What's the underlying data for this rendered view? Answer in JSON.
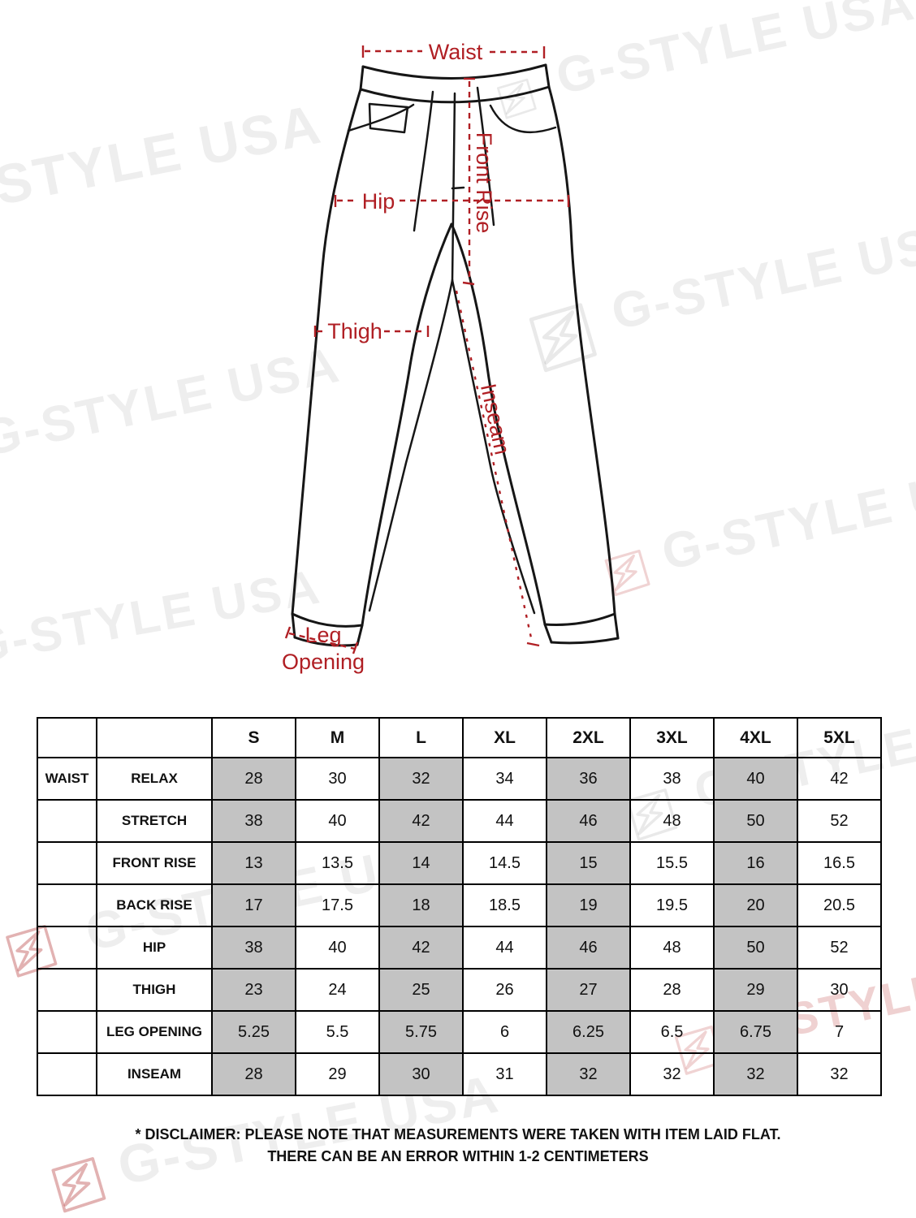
{
  "brand": {
    "watermark_text": "G-STYLE USA"
  },
  "diagram": {
    "annotation_color": "#b01f24",
    "labels": {
      "waist": "Waist",
      "hip": "Hip",
      "front_rise": "Front Rise",
      "thigh": "Thigh",
      "inseam": "Inseam",
      "leg_opening_line1": "Leg",
      "leg_opening_line2": "Opening"
    }
  },
  "size_chart": {
    "type": "table",
    "size_columns": [
      "S",
      "M",
      "L",
      "XL",
      "2XL",
      "3XL",
      "4XL",
      "5XL"
    ],
    "shaded_columns": [
      "S",
      "L",
      "2XL",
      "4XL"
    ],
    "shade_color": "#c3c3c3",
    "rows": [
      {
        "group": "WAIST",
        "label": "RELAX",
        "values": [
          "28",
          "30",
          "32",
          "34",
          "36",
          "38",
          "40",
          "42"
        ]
      },
      {
        "group": "",
        "label": "STRETCH",
        "values": [
          "38",
          "40",
          "42",
          "44",
          "46",
          "48",
          "50",
          "52"
        ]
      },
      {
        "group": "",
        "label": "FRONT RISE",
        "values": [
          "13",
          "13.5",
          "14",
          "14.5",
          "15",
          "15.5",
          "16",
          "16.5"
        ]
      },
      {
        "group": "",
        "label": "BACK RISE",
        "values": [
          "17",
          "17.5",
          "18",
          "18.5",
          "19",
          "19.5",
          "20",
          "20.5"
        ]
      },
      {
        "group": "",
        "label": "HIP",
        "values": [
          "38",
          "40",
          "42",
          "44",
          "46",
          "48",
          "50",
          "52"
        ]
      },
      {
        "group": "",
        "label": "THIGH",
        "values": [
          "23",
          "24",
          "25",
          "26",
          "27",
          "28",
          "29",
          "30"
        ]
      },
      {
        "group": "",
        "label": "LEG OPENING",
        "values": [
          "5.25",
          "5.5",
          "5.75",
          "6",
          "6.25",
          "6.5",
          "6.75",
          "7"
        ]
      },
      {
        "group": "",
        "label": "INSEAM",
        "values": [
          "28",
          "29",
          "30",
          "31",
          "32",
          "32",
          "32",
          "32"
        ]
      }
    ]
  },
  "disclaimer": {
    "line1": "* DISCLAIMER: PLEASE NOTE THAT MEASUREMENTS WERE TAKEN WITH ITEM LAID FLAT.",
    "line2": "THERE CAN BE AN ERROR WITHIN 1-2 CENTIMETERS"
  }
}
